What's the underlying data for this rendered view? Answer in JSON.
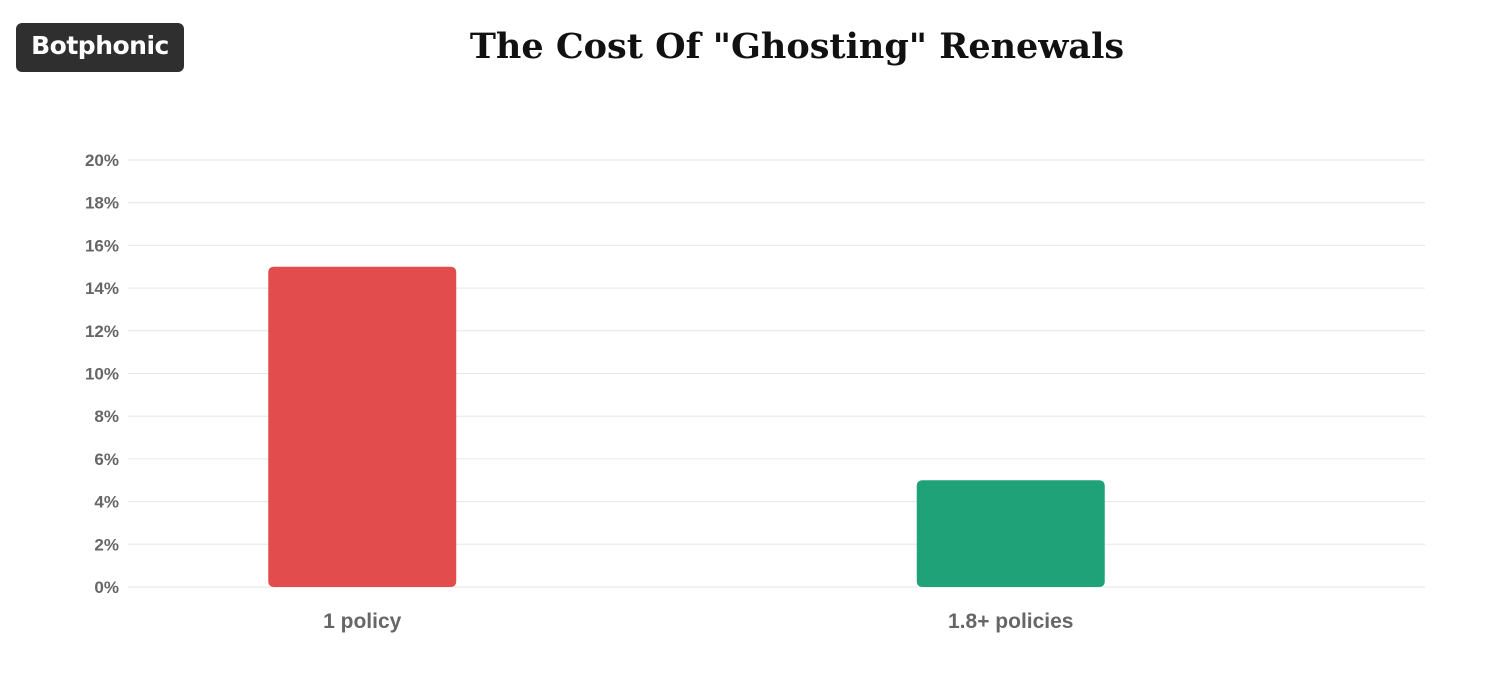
{
  "brand": {
    "logo_text": "Botphonic",
    "accent_color": "#e8542f",
    "background_color": "#2f2f2f"
  },
  "chart_data": {
    "type": "bar",
    "title": "The Cost Of \"Ghosting\" Renewals",
    "categories": [
      "1 policy",
      "1.8+ policies"
    ],
    "values": [
      15,
      5
    ],
    "colors": [
      "#e24c4c",
      "#1fa277"
    ],
    "ylim": [
      0,
      20
    ],
    "yticks": [
      "0%",
      "2%",
      "4%",
      "6%",
      "8%",
      "10%",
      "12%",
      "14%",
      "16%",
      "18%",
      "20%"
    ],
    "ytick_values": [
      0,
      2,
      4,
      6,
      8,
      10,
      12,
      14,
      16,
      18,
      20
    ],
    "grid": true,
    "xlabel": "",
    "ylabel": ""
  }
}
